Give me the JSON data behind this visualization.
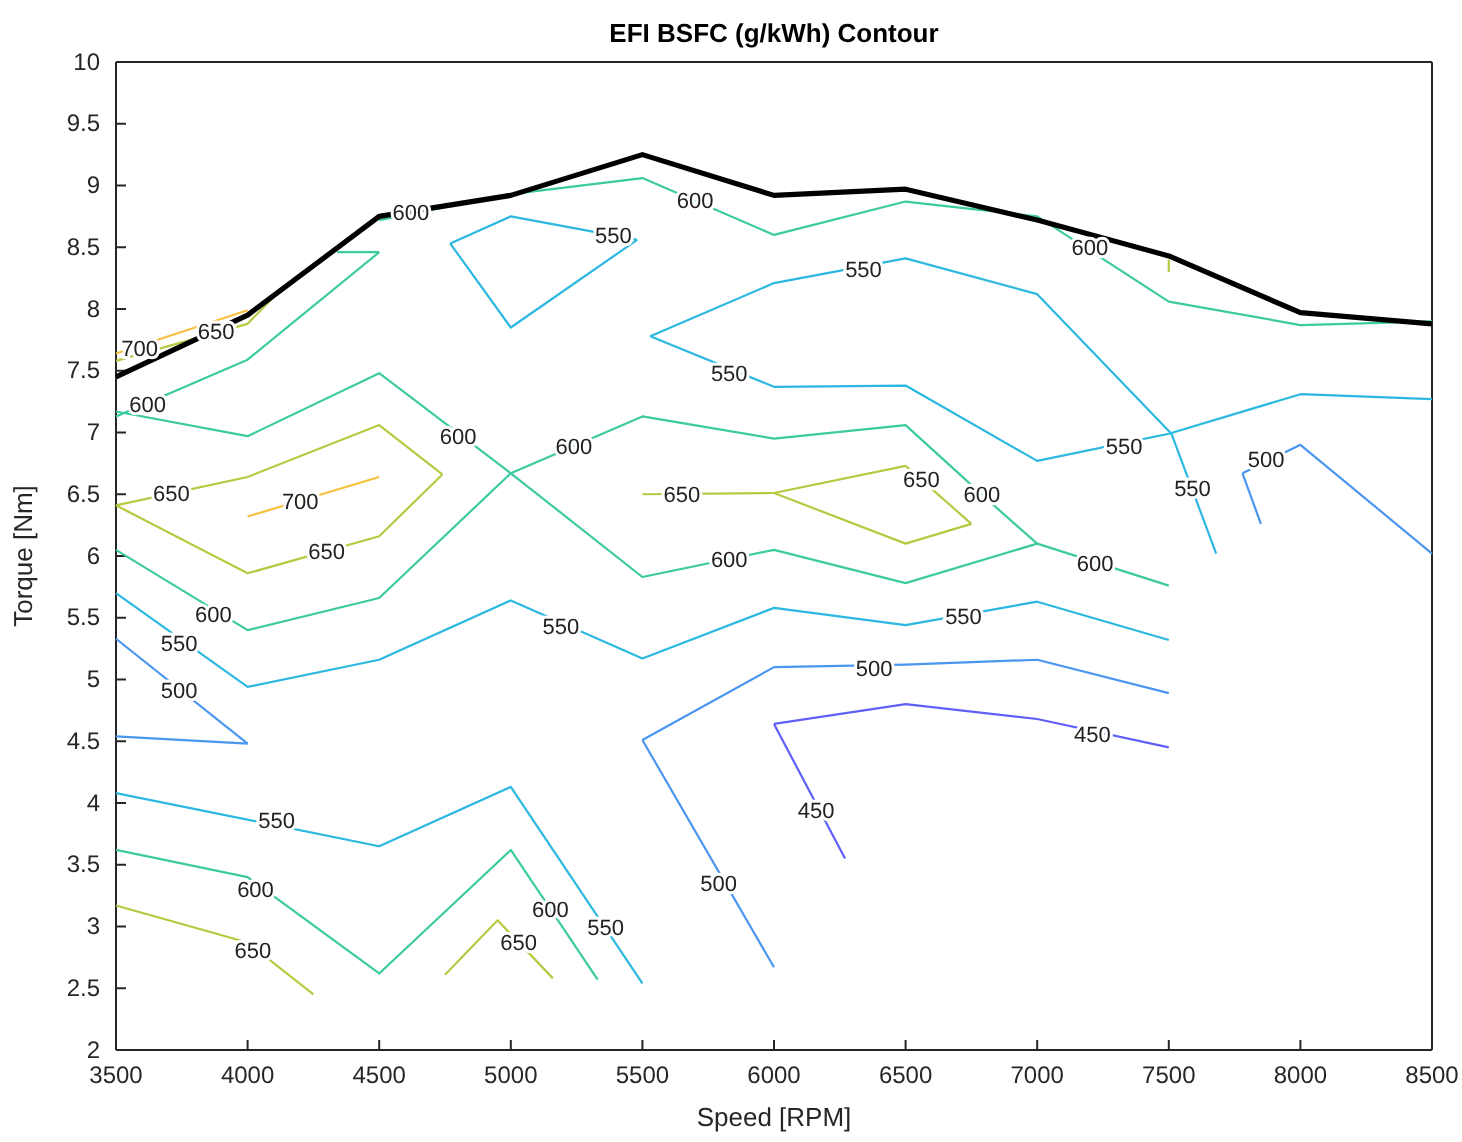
{
  "chart_data": {
    "type": "line",
    "title": "EFI BSFC (g/kWh) Contour",
    "xlabel": "Speed [RPM]",
    "ylabel": "Torque [Nm]",
    "xlim": [
      3500,
      8500
    ],
    "xticks": [
      3500,
      4000,
      4500,
      5000,
      5500,
      6000,
      6500,
      7000,
      7500,
      8000,
      8500
    ],
    "ylim": [
      2,
      10
    ],
    "yticks": [
      2,
      2.5,
      3,
      3.5,
      4,
      4.5,
      5,
      5.5,
      6,
      6.5,
      7,
      7.5,
      8,
      8.5,
      9,
      9.5,
      10
    ],
    "series": [
      {
        "color": "#f8c040",
        "x": [
          3500,
          4000
        ],
        "values": [
          7.64,
          7.99
        ]
      },
      {
        "color": "#b8c840",
        "x": [
          3500,
          4000,
          4100
        ],
        "values": [
          7.58,
          7.88,
          8.1
        ]
      },
      {
        "color": "#3ccaa0",
        "x": [
          3500,
          4000,
          4500
        ],
        "values": [
          7.13,
          7.59,
          8.46
        ]
      },
      {
        "color": "#3ccaa0",
        "x": [
          4340,
          4500
        ],
        "values": [
          8.46,
          8.46
        ]
      },
      {
        "color": "#3ccaa0",
        "x": [
          4500,
          5000,
          5500,
          6000,
          6500,
          7000,
          7500,
          8000,
          8500
        ],
        "values": [
          8.72,
          8.93,
          9.06,
          8.6,
          8.87,
          8.75,
          8.06,
          7.87,
          7.9
        ]
      },
      {
        "color": "#b8c840",
        "x": [
          7500,
          7500
        ],
        "values": [
          8.4,
          8.3
        ]
      },
      {
        "color": "#2cb8e0",
        "x": [
          4770,
          5000,
          5480
        ],
        "values": [
          8.53,
          8.75,
          8.56
        ]
      },
      {
        "color": "#2cb8e0",
        "x": [
          4770,
          5000,
          5480
        ],
        "values": [
          8.53,
          7.85,
          8.56
        ]
      },
      {
        "color": "#2cb8e0",
        "x": [
          5530,
          6000,
          6500,
          7000,
          7510,
          7680
        ],
        "values": [
          7.78,
          8.21,
          8.41,
          8.12,
          6.99,
          6.02
        ]
      },
      {
        "color": "#2cb8e0",
        "x": [
          5530,
          6000,
          6500,
          7000,
          7500,
          8000,
          8500
        ],
        "values": [
          7.78,
          7.37,
          7.38,
          6.77,
          6.99,
          7.31,
          7.27
        ]
      },
      {
        "color": "#4a96f0",
        "x": [
          7780,
          7850
        ],
        "values": [
          6.67,
          6.26
        ]
      },
      {
        "color": "#4a96f0",
        "x": [
          7780,
          8000,
          8500
        ],
        "values": [
          6.67,
          6.9,
          6.02
        ]
      },
      {
        "color": "#b8c840",
        "x": [
          3500,
          4000,
          4500,
          4740
        ],
        "values": [
          6.41,
          6.64,
          7.06,
          6.66
        ]
      },
      {
        "color": "#b8c840",
        "x": [
          3500,
          4000,
          4500,
          4740
        ],
        "values": [
          6.41,
          5.86,
          6.16,
          6.66
        ]
      },
      {
        "color": "#f8c040",
        "x": [
          4000,
          4500
        ],
        "values": [
          6.32,
          6.64
        ]
      },
      {
        "color": "#3ccaa0",
        "x": [
          3500,
          4000,
          4500,
          5000,
          5500,
          6000,
          6500,
          7000
        ],
        "values": [
          7.17,
          6.97,
          7.48,
          6.67,
          5.83,
          6.05,
          5.78,
          6.1
        ]
      },
      {
        "color": "#3ccaa0",
        "x": [
          3500,
          4000,
          4500,
          5000,
          5500,
          6000,
          6500,
          6830,
          7000,
          7500
        ],
        "values": [
          6.05,
          5.4,
          5.66,
          6.67,
          7.13,
          6.95,
          7.06,
          6.42,
          6.1,
          5.76
        ]
      },
      {
        "color": "#b8c840",
        "x": [
          5500,
          6000,
          6500,
          6750
        ],
        "values": [
          6.5,
          6.51,
          6.73,
          6.26
        ]
      },
      {
        "color": "#b8c840",
        "x": [
          6000,
          6500,
          6750
        ],
        "values": [
          6.51,
          6.1,
          6.26
        ]
      },
      {
        "color": "#2cb8e0",
        "x": [
          3500,
          4000,
          4500,
          5000,
          5500,
          6000,
          6500,
          7000,
          7500
        ],
        "values": [
          5.7,
          4.94,
          5.16,
          5.64,
          5.17,
          5.58,
          5.44,
          5.63,
          5.32
        ]
      },
      {
        "color": "#4a96f0",
        "x": [
          3500,
          4000
        ],
        "values": [
          5.33,
          4.48
        ]
      },
      {
        "color": "#4a96f0",
        "x": [
          3500,
          4000
        ],
        "values": [
          4.54,
          4.48
        ]
      },
      {
        "color": "#4a96f0",
        "x": [
          5500,
          6000
        ],
        "values": [
          4.51,
          2.67
        ]
      },
      {
        "color": "#4a96f0",
        "x": [
          5500,
          6000,
          6500,
          7000,
          7500
        ],
        "values": [
          4.51,
          5.1,
          5.12,
          5.16,
          4.89
        ]
      },
      {
        "color": "#6060f8",
        "x": [
          6000,
          6270
        ],
        "values": [
          4.64,
          3.55
        ]
      },
      {
        "color": "#6060f8",
        "x": [
          6000,
          6500,
          7000,
          7500
        ],
        "values": [
          4.64,
          4.8,
          4.68,
          4.45
        ]
      },
      {
        "color": "#2cb8e0",
        "x": [
          3500,
          4500,
          5000,
          5500
        ],
        "values": [
          4.08,
          3.65,
          4.13,
          2.54
        ]
      },
      {
        "color": "#3ccaa0",
        "x": [
          3500,
          4000,
          4500,
          5000,
          5330
        ],
        "values": [
          3.62,
          3.4,
          2.62,
          3.62,
          2.57
        ]
      },
      {
        "color": "#b8c840",
        "x": [
          3500,
          4000,
          4250
        ],
        "values": [
          3.17,
          2.87,
          2.45
        ]
      },
      {
        "color": "#b8c840",
        "x": [
          4750,
          4950,
          5160
        ],
        "values": [
          2.61,
          3.05,
          2.58
        ]
      },
      {
        "color": "#000000",
        "x": [
          3500,
          4000,
          4500,
          5000,
          5500,
          6000,
          6500,
          7000,
          7500,
          8000,
          8500
        ],
        "values": [
          7.45,
          7.95,
          8.75,
          8.92,
          9.25,
          8.92,
          8.97,
          8.72,
          8.43,
          7.97,
          7.88
        ]
      }
    ],
    "annotations": [
      {
        "text": "600",
        "x": 3620,
        "y": 7.23
      },
      {
        "text": "700",
        "x": 3590,
        "y": 7.68
      },
      {
        "text": "650",
        "x": 3880,
        "y": 7.82
      },
      {
        "text": "600",
        "x": 4620,
        "y": 8.78
      },
      {
        "text": "550",
        "x": 5390,
        "y": 8.6
      },
      {
        "text": "600",
        "x": 5700,
        "y": 8.88
      },
      {
        "text": "550",
        "x": 5830,
        "y": 7.48
      },
      {
        "text": "550",
        "x": 6340,
        "y": 8.32
      },
      {
        "text": "600",
        "x": 7200,
        "y": 8.5
      },
      {
        "text": "650",
        "x": 3710,
        "y": 6.51
      },
      {
        "text": "700",
        "x": 4200,
        "y": 6.44
      },
      {
        "text": "650",
        "x": 4300,
        "y": 6.04
      },
      {
        "text": "600",
        "x": 4800,
        "y": 6.97
      },
      {
        "text": "600",
        "x": 5240,
        "y": 6.89
      },
      {
        "text": "650",
        "x": 5650,
        "y": 6.5
      },
      {
        "text": "600",
        "x": 6790,
        "y": 6.5
      },
      {
        "text": "650",
        "x": 6560,
        "y": 6.62
      },
      {
        "text": "550",
        "x": 7330,
        "y": 6.89
      },
      {
        "text": "550",
        "x": 7590,
        "y": 6.55
      },
      {
        "text": "500",
        "x": 7870,
        "y": 6.78
      },
      {
        "text": "600",
        "x": 5830,
        "y": 5.97
      },
      {
        "text": "600",
        "x": 7220,
        "y": 5.94
      },
      {
        "text": "600",
        "x": 3870,
        "y": 5.53
      },
      {
        "text": "550",
        "x": 3740,
        "y": 5.29
      },
      {
        "text": "500",
        "x": 3740,
        "y": 4.91
      },
      {
        "text": "550",
        "x": 5190,
        "y": 5.43
      },
      {
        "text": "550",
        "x": 6720,
        "y": 5.51
      },
      {
        "text": "500",
        "x": 6380,
        "y": 5.09
      },
      {
        "text": "450",
        "x": 7210,
        "y": 4.56
      },
      {
        "text": "450",
        "x": 6160,
        "y": 3.94
      },
      {
        "text": "500",
        "x": 5790,
        "y": 3.35
      },
      {
        "text": "550",
        "x": 4110,
        "y": 3.86
      },
      {
        "text": "600",
        "x": 4030,
        "y": 3.3
      },
      {
        "text": "650",
        "x": 4020,
        "y": 2.81
      },
      {
        "text": "650",
        "x": 5030,
        "y": 2.87
      },
      {
        "text": "600",
        "x": 5150,
        "y": 3.14
      },
      {
        "text": "550",
        "x": 5360,
        "y": 2.99
      }
    ]
  }
}
